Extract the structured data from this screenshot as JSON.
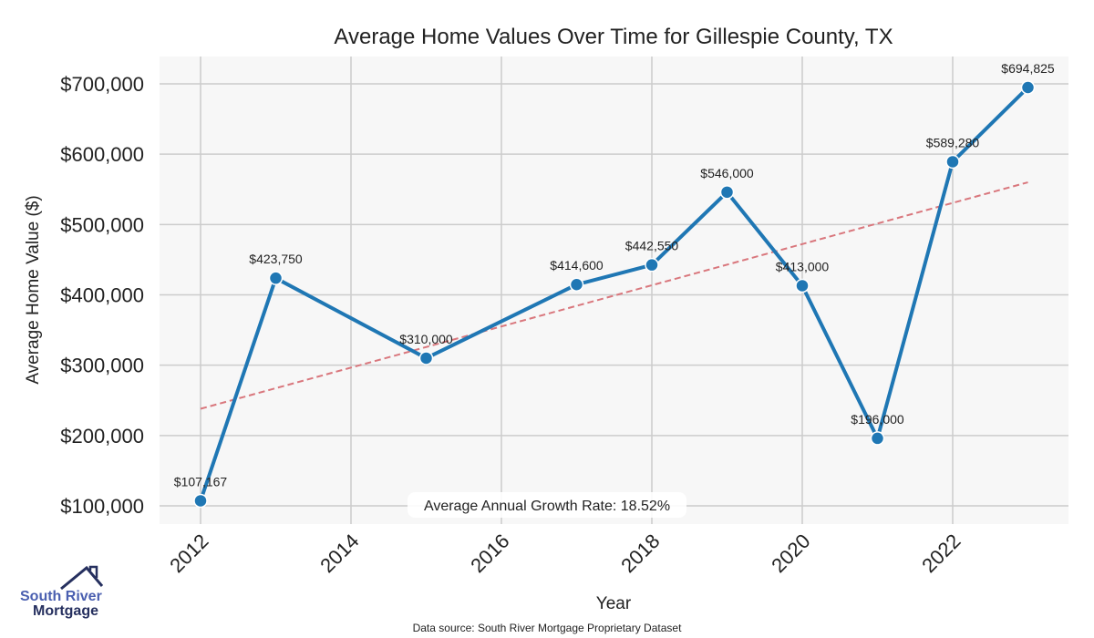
{
  "chart_data": {
    "type": "line",
    "title": "Average Home Values Over Time for Gillespie County, TX",
    "xlabel": "Year",
    "ylabel": "Average Home Value ($)",
    "xlim": [
      2011.4,
      2023.6
    ],
    "ylim": [
      72000,
      738000
    ],
    "x_ticks": [
      2012,
      2014,
      2016,
      2018,
      2020,
      2022
    ],
    "y_ticks": [
      100000,
      200000,
      300000,
      400000,
      500000,
      600000,
      700000
    ],
    "y_tick_labels": [
      "$100,000",
      "$200,000",
      "$300,000",
      "$400,000",
      "$500,000",
      "$600,000",
      "$700,000"
    ],
    "grid": true,
    "series": [
      {
        "name": "Average Home Value",
        "color": "#1f77b4",
        "x": [
          2012,
          2013,
          2015,
          2017,
          2018,
          2019,
          2020,
          2021,
          2022,
          2023
        ],
        "y": [
          107167,
          423750,
          310000,
          414600,
          442550,
          546000,
          413000,
          196000,
          589280,
          694825
        ],
        "labels": [
          "$107,167",
          "$423,750",
          "$310,000",
          "$414,600",
          "$442,550",
          "$546,000",
          "$413,000",
          "$196,000",
          "$589,280",
          "$694,825"
        ]
      }
    ],
    "trendline": {
      "name": "Trend",
      "color": "#d9777d",
      "x": [
        2012,
        2023
      ],
      "y": [
        238000,
        560000
      ]
    },
    "annotation": "Average Annual Growth Rate: 18.52%",
    "source": "Data source: South River Mortgage Proprietary Dataset"
  },
  "logo": {
    "line1": "South River",
    "line2": "Mortgage"
  }
}
